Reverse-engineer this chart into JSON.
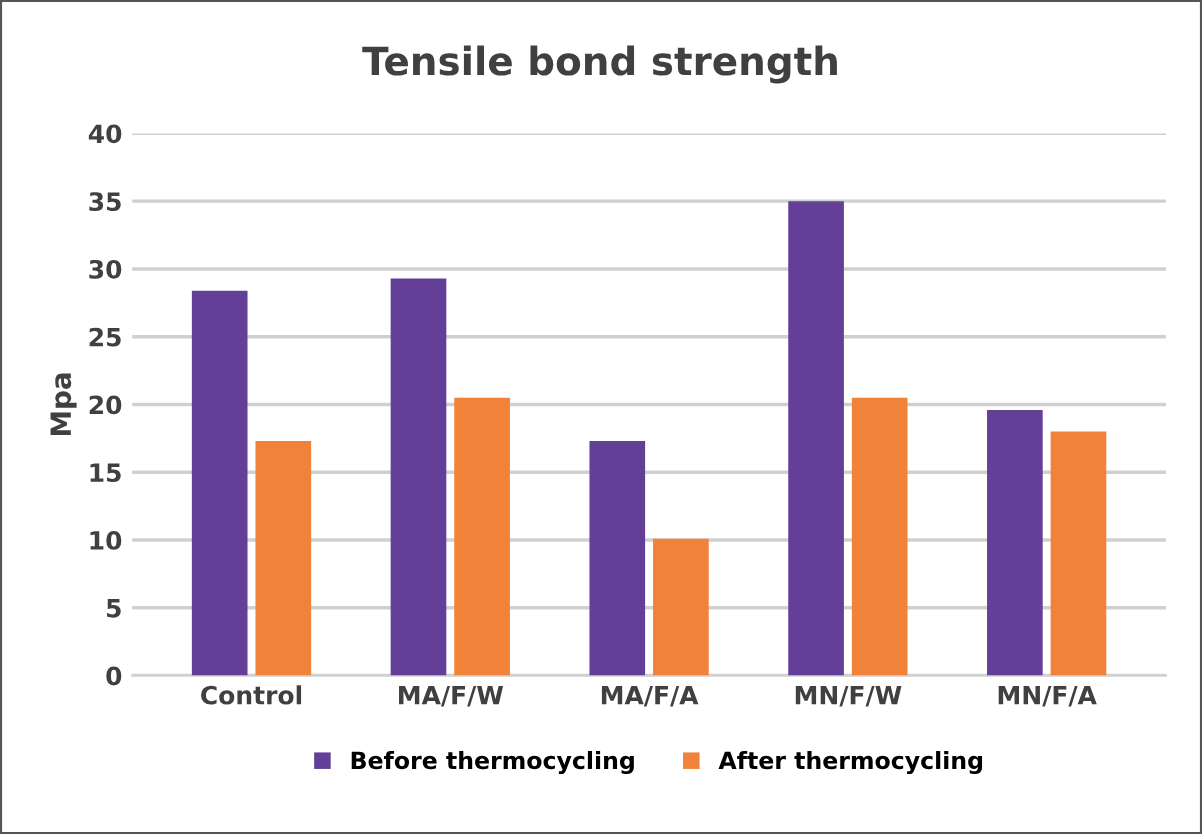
{
  "chart_data": {
    "type": "bar",
    "title": "Tensile bond strength",
    "ylabel": "Mpa",
    "categories": [
      "Control",
      "MA/F/W",
      "MA/F/A",
      "MN/F/W",
      "MN/F/A"
    ],
    "series": [
      {
        "name": "Before thermocycling",
        "color": "#643f97",
        "values": [
          28.4,
          29.3,
          17.3,
          35.0,
          19.6
        ]
      },
      {
        "name": "After thermocycling",
        "color": "#f0823a",
        "values": [
          17.3,
          20.5,
          10.1,
          20.5,
          18.0
        ]
      }
    ],
    "ylim": [
      0,
      40
    ],
    "yticks": [
      0,
      5,
      10,
      15,
      20,
      25,
      30,
      35,
      40
    ],
    "grid": "y",
    "legend": "bottom"
  }
}
